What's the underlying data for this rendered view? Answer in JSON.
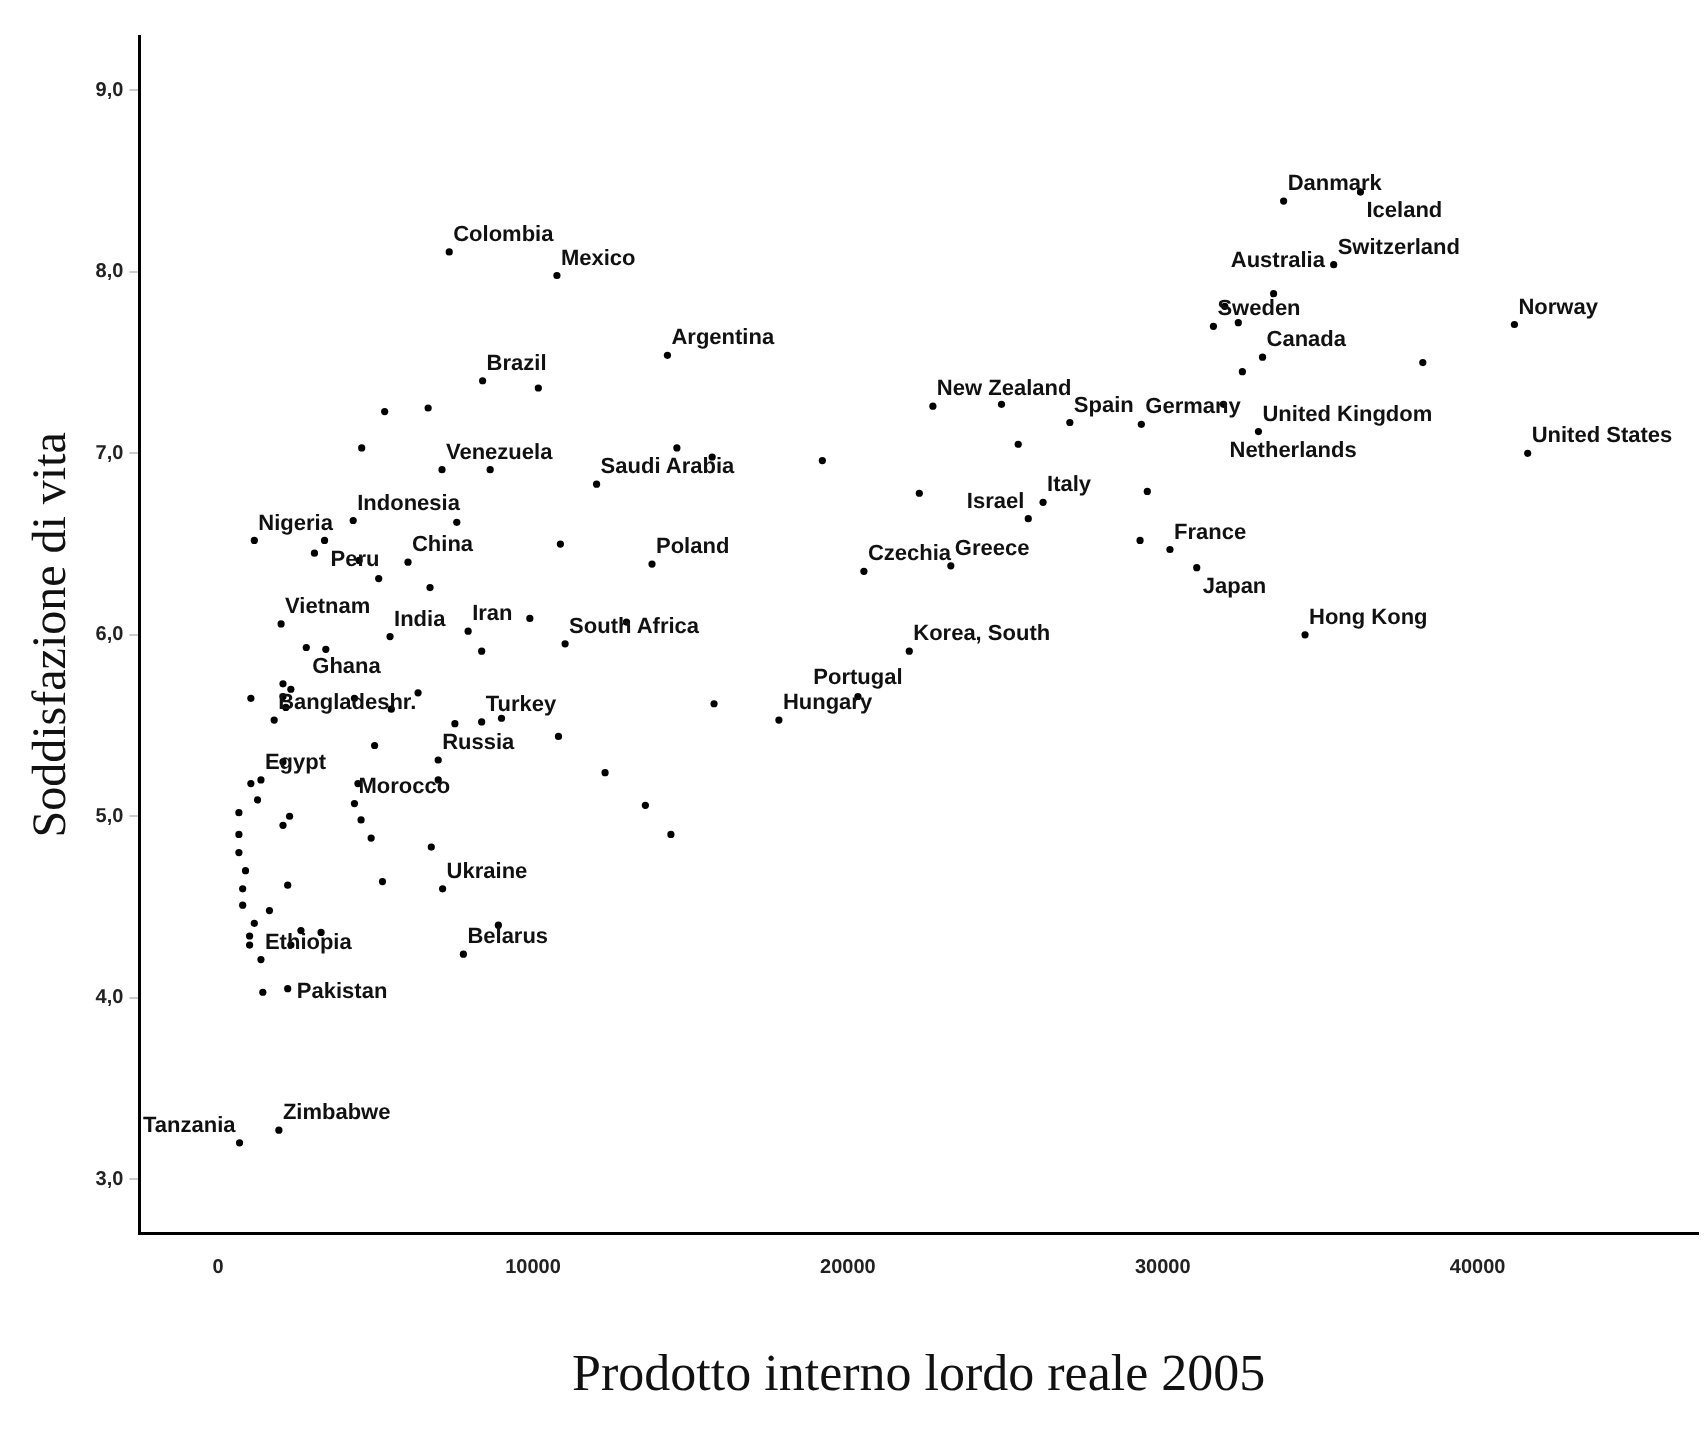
{
  "chart_data": {
    "type": "scatter",
    "xlabel": "Prodotto interno lordo reale 2005",
    "ylabel": "Soddisfazione di vita",
    "color": "#000000",
    "marker": "circle",
    "xlim": [
      -2500,
      47000
    ],
    "xticks": [
      0,
      10000,
      20000,
      30000,
      40000
    ],
    "ylim": [
      2.7,
      9.3
    ],
    "yticks": [
      {
        "value": 3,
        "label": "3,0"
      },
      {
        "value": 4,
        "label": "4,0"
      },
      {
        "value": 5,
        "label": "5,0"
      },
      {
        "value": 6,
        "label": "6,0"
      },
      {
        "value": 7,
        "label": "7,0"
      },
      {
        "value": 8,
        "label": "8,0"
      },
      {
        "value": 9,
        "label": "9,0"
      }
    ],
    "x": [
      7340,
      10760,
      8400,
      10170,
      5290,
      6670,
      4560,
      7110,
      8640,
      12020,
      4290,
      7580,
      1150,
      3380,
      3060,
      4480,
      6030,
      10870,
      13780,
      5100,
      6730,
      2000,
      5460,
      7940,
      9900,
      12970,
      8370,
      11020,
      2800,
      3420,
      1040,
      2060,
      2310,
      2060,
      2150,
      4330,
      6350,
      5500,
      7520,
      8370,
      9000,
      10810,
      1780,
      4970,
      6990,
      6990,
      12290,
      13570,
      2060,
      1040,
      1250,
      1360,
      4440,
      4330,
      4540,
      2270,
      2060,
      660,
      660,
      660,
      870,
      780,
      780,
      1630,
      1150,
      1000,
      1000,
      1360,
      2210,
      4860,
      5220,
      6770,
      7130,
      8900,
      2630,
      3270,
      2310,
      1420,
      2210,
      7790,
      1930,
      680,
      21950,
      15750,
      17810,
      20320,
      14380,
      14270,
      14570,
      15690,
      19190,
      22270,
      22700,
      24880,
      25410,
      27050,
      29320,
      26200,
      25730,
      29510,
      29280,
      20510,
      23270,
      36280,
      33840,
      35430,
      33520,
      31970,
      31610,
      32400,
      33170,
      32530,
      41170,
      38260,
      31930,
      33040,
      41590,
      30230,
      31080,
      34520
    ],
    "values": [
      8.11,
      7.98,
      7.4,
      7.36,
      7.23,
      7.25,
      7.03,
      6.91,
      6.91,
      6.83,
      6.63,
      6.62,
      6.52,
      6.52,
      6.45,
      6.41,
      6.4,
      6.5,
      6.39,
      6.31,
      6.26,
      6.06,
      5.99,
      6.02,
      6.09,
      6.07,
      5.91,
      5.95,
      5.93,
      5.92,
      5.65,
      5.73,
      5.7,
      5.66,
      5.6,
      5.65,
      5.68,
      5.59,
      5.51,
      5.52,
      5.54,
      5.44,
      5.53,
      5.39,
      5.31,
      5.2,
      5.24,
      5.06,
      5.3,
      5.18,
      5.09,
      5.2,
      5.18,
      5.07,
      4.98,
      5.0,
      4.95,
      5.02,
      4.9,
      4.8,
      4.7,
      4.6,
      4.51,
      4.48,
      4.41,
      4.34,
      4.29,
      4.21,
      4.62,
      4.88,
      4.64,
      4.83,
      4.6,
      4.4,
      4.37,
      4.36,
      4.29,
      4.03,
      4.05,
      4.24,
      3.27,
      3.2,
      5.91,
      5.62,
      5.53,
      5.66,
      4.9,
      7.54,
      7.03,
      6.98,
      6.96,
      6.78,
      7.26,
      7.27,
      7.05,
      7.17,
      7.16,
      6.73,
      6.64,
      6.79,
      6.52,
      6.35,
      6.38,
      8.44,
      8.39,
      8.04,
      7.88,
      7.81,
      7.7,
      7.72,
      7.53,
      7.45,
      7.71,
      7.5,
      7.27,
      7.12,
      7.0,
      6.47,
      6.37,
      6.0
    ],
    "annotations": [
      {
        "text": "Colombia",
        "x": 7340,
        "y": 8.11
      },
      {
        "text": "Mexico",
        "x": 10760,
        "y": 7.98
      },
      {
        "text": "Brazil",
        "x": 8400,
        "y": 7.4
      },
      {
        "text": "Argentina",
        "x": 14270,
        "y": 7.54
      },
      {
        "text": "Venezuela",
        "x": 7110,
        "y": 6.91
      },
      {
        "text": "Saudi Arabia",
        "x": 12020,
        "y": 6.83
      },
      {
        "text": "Indonesia",
        "x": 4290,
        "y": 6.63
      },
      {
        "text": "Nigeria",
        "x": 1150,
        "y": 6.52
      },
      {
        "text": "Peru",
        "x": 3380,
        "y": 6.52
      },
      {
        "text": "China",
        "x": 6030,
        "y": 6.4
      },
      {
        "text": "Vietnam",
        "x": 2000,
        "y": 6.06
      },
      {
        "text": "India",
        "x": 5460,
        "y": 5.99
      },
      {
        "text": "Iran",
        "x": 7940,
        "y": 6.02
      },
      {
        "text": "Poland",
        "x": 13780,
        "y": 6.39
      },
      {
        "text": "South Africa",
        "x": 11020,
        "y": 5.95
      },
      {
        "text": "Ghana",
        "x": 2800,
        "y": 5.93
      },
      {
        "text": "Turkey",
        "x": 8370,
        "y": 5.52
      },
      {
        "text": "Bangladeshr.",
        "x": 1780,
        "y": 5.53
      },
      {
        "text": "Egypt",
        "x": 1360,
        "y": 5.2
      },
      {
        "text": "Morocco",
        "x": 4330,
        "y": 5.07
      },
      {
        "text": "Russia",
        "x": 6990,
        "y": 5.31
      },
      {
        "text": "Hungary",
        "x": 17810,
        "y": 5.53
      },
      {
        "text": "Ukraine",
        "x": 7130,
        "y": 4.6
      },
      {
        "text": "Belarus",
        "x": 7790,
        "y": 4.24
      },
      {
        "text": "Ethiopia",
        "x": 1360,
        "y": 4.21
      },
      {
        "text": "Pakistan",
        "x": 2310,
        "y": 4.29
      },
      {
        "text": "Zimbabwe",
        "x": 1930,
        "y": 3.27
      },
      {
        "text": "Tanzania",
        "x": 680,
        "y": 3.2
      },
      {
        "text": "Korea, South",
        "x": 21950,
        "y": 5.91
      },
      {
        "text": "Portugal",
        "x": 20320,
        "y": 5.66
      },
      {
        "text": "Czechia",
        "x": 20510,
        "y": 6.35
      },
      {
        "text": "Greece",
        "x": 23270,
        "y": 6.38
      },
      {
        "text": "New Zealand",
        "x": 22700,
        "y": 7.26
      },
      {
        "text": "Spain",
        "x": 27050,
        "y": 7.17
      },
      {
        "text": "Germany",
        "x": 29320,
        "y": 7.16
      },
      {
        "text": "Italy",
        "x": 26200,
        "y": 6.73
      },
      {
        "text": "Israel",
        "x": 25730,
        "y": 6.64
      },
      {
        "text": "France",
        "x": 30230,
        "y": 6.47
      },
      {
        "text": "Japan",
        "x": 31080,
        "y": 6.37
      },
      {
        "text": "Hong Kong",
        "x": 34520,
        "y": 6.0
      },
      {
        "text": "Netherlands",
        "x": 31930,
        "y": 7.27
      },
      {
        "text": "United Kingdom",
        "x": 33040,
        "y": 7.12
      },
      {
        "text": "Canada",
        "x": 33170,
        "y": 7.53
      },
      {
        "text": "Sweden",
        "x": 31610,
        "y": 7.7
      },
      {
        "text": "Australia",
        "x": 31970,
        "y": 7.81
      },
      {
        "text": "Danmark",
        "x": 33840,
        "y": 8.39
      },
      {
        "text": "Iceland",
        "x": 36280,
        "y": 8.44
      },
      {
        "text": "Switzerland",
        "x": 35430,
        "y": 8.04
      },
      {
        "text": "Norway",
        "x": 41170,
        "y": 7.71
      },
      {
        "text": "United States",
        "x": 41590,
        "y": 7.0
      }
    ]
  }
}
